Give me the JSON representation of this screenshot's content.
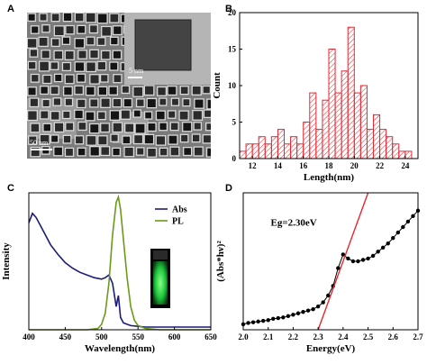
{
  "panels": {
    "a": "A",
    "b": "B",
    "c": "C",
    "d": "D"
  },
  "tem": {
    "scale_main": "50 nm",
    "scale_inset": "5 nm",
    "colors": {
      "bg": "#7a7a7a",
      "cube": "#2b2b2b",
      "cube_edge": "#d9d9d9"
    }
  },
  "chart_data": [
    {
      "panel": "B",
      "type": "bar",
      "ylabel": "Count",
      "xlabel": "Length(nm)",
      "x": [
        11.25,
        11.75,
        12.25,
        12.75,
        13.25,
        13.75,
        14.25,
        14.75,
        15.25,
        15.75,
        16.25,
        16.75,
        17.25,
        17.75,
        18.25,
        18.75,
        19.25,
        19.75,
        20.25,
        20.75,
        21.25,
        21.75,
        22.25,
        22.75,
        23.25,
        23.75,
        24.25
      ],
      "values": [
        1,
        2,
        2,
        3,
        2,
        3,
        4,
        2,
        3,
        2,
        5,
        9,
        4,
        8,
        15,
        9,
        12,
        18,
        9,
        10,
        4,
        6,
        4,
        3,
        2,
        1,
        1
      ],
      "bar_width": 0.5,
      "xlim": [
        11,
        25
      ],
      "ylim": [
        0,
        20
      ],
      "xticks": [
        12,
        14,
        16,
        18,
        20,
        22,
        24
      ],
      "yticks": [
        0,
        5,
        10,
        15,
        20
      ],
      "colors": {
        "bar_edge": "#e8262f",
        "hatch": "#e8262f",
        "bar_fill": "#ffffff"
      }
    },
    {
      "panel": "C",
      "type": "line",
      "ylabel": "Intensity",
      "xlabel": "Wavelength(nm)",
      "xlim": [
        400,
        650
      ],
      "ylim": [
        0,
        1.0
      ],
      "xticks": [
        400,
        450,
        500,
        550,
        600,
        650
      ],
      "legend_position": "top-right",
      "series": [
        {
          "name": "Abs",
          "color": "#1a1a7a",
          "x": [
            400,
            405,
            410,
            420,
            430,
            440,
            450,
            460,
            470,
            480,
            490,
            500,
            505,
            510,
            515,
            520,
            523,
            526,
            530,
            540,
            550,
            560,
            580,
            600,
            620,
            650
          ],
          "y": [
            0.78,
            0.85,
            0.82,
            0.72,
            0.62,
            0.55,
            0.49,
            0.45,
            0.42,
            0.4,
            0.38,
            0.37,
            0.38,
            0.4,
            0.34,
            0.17,
            0.25,
            0.09,
            0.05,
            0.03,
            0.025,
            0.02,
            0.02,
            0.02,
            0.02,
            0.02
          ]
        },
        {
          "name": "PL",
          "color": "#6a9a1a",
          "x": [
            400,
            480,
            495,
            500,
            505,
            510,
            515,
            520,
            523,
            526,
            530,
            535,
            540,
            545,
            550,
            560,
            580,
            600,
            650
          ],
          "y": [
            0,
            0,
            0.01,
            0.04,
            0.12,
            0.34,
            0.69,
            0.93,
            0.97,
            0.88,
            0.66,
            0.38,
            0.17,
            0.07,
            0.03,
            0.01,
            0,
            0,
            0
          ]
        }
      ]
    },
    {
      "panel": "D",
      "type": "scatter",
      "ylabel": "(Abs*hν)²",
      "xlabel": "Energy(eV)",
      "annotation": "Eg=2.30eV",
      "xlim": [
        2.0,
        2.7
      ],
      "ylim": [
        0,
        1.0
      ],
      "xticks": [
        2.0,
        2.1,
        2.2,
        2.3,
        2.4,
        2.5,
        2.6,
        2.7
      ],
      "series": [
        {
          "name": "data",
          "color": "#000000",
          "x": [
            2.0,
            2.02,
            2.04,
            2.06,
            2.08,
            2.1,
            2.12,
            2.14,
            2.16,
            2.18,
            2.2,
            2.22,
            2.24,
            2.26,
            2.28,
            2.3,
            2.32,
            2.34,
            2.36,
            2.38,
            2.4,
            2.42,
            2.44,
            2.46,
            2.48,
            2.5,
            2.52,
            2.54,
            2.56,
            2.58,
            2.6,
            2.62,
            2.64,
            2.66,
            2.68,
            2.7
          ],
          "y": [
            0.04,
            0.05,
            0.055,
            0.06,
            0.065,
            0.07,
            0.08,
            0.085,
            0.09,
            0.1,
            0.11,
            0.12,
            0.13,
            0.14,
            0.15,
            0.17,
            0.2,
            0.25,
            0.32,
            0.45,
            0.55,
            0.52,
            0.5,
            0.5,
            0.51,
            0.52,
            0.54,
            0.57,
            0.6,
            0.63,
            0.67,
            0.71,
            0.75,
            0.79,
            0.83,
            0.87
          ]
        },
        {
          "name": "fit",
          "color": "#e8262f",
          "x": [
            2.3,
            2.5
          ],
          "y": [
            0.0,
            1.0
          ]
        }
      ]
    }
  ]
}
